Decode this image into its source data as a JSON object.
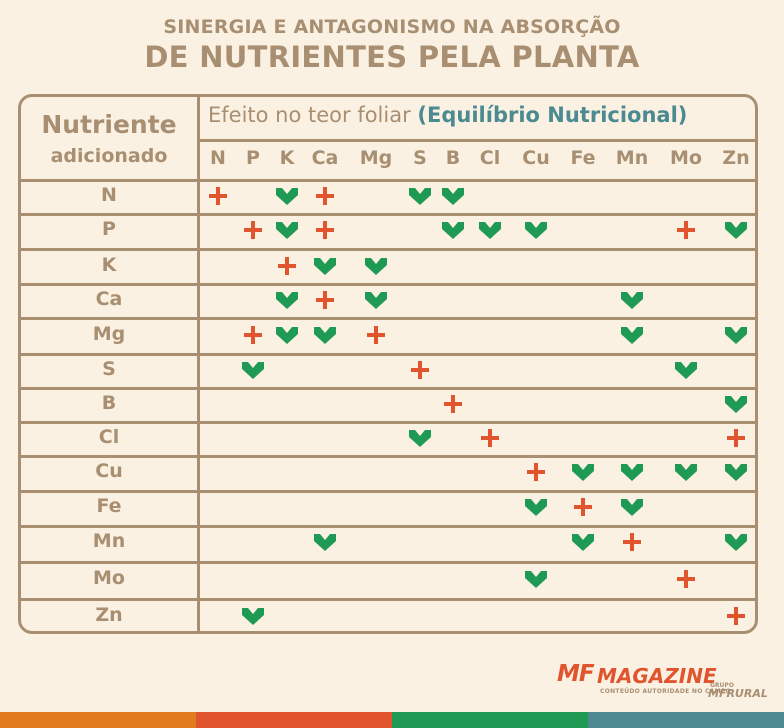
{
  "title_line1": "SINERGIA E ANTAGONISMO NA ABSORÇÃO",
  "title_line2": "DE NUTRIENTES PELA PLANTA",
  "header_left_line1": "Nutriente",
  "header_left_line2": "adicionado",
  "effect_title_prefix": "Efeito no teor foliar",
  "effect_title_highlight": "(Equilíbrio Nutricional)",
  "columns": [
    "N",
    "P",
    "K",
    "Ca",
    "Mg",
    "S",
    "B",
    "Cl",
    "Cu",
    "Fe",
    "Mn",
    "Mo",
    "Zn"
  ],
  "rows": [
    {
      "label": "N",
      "marks": [
        "+",
        "",
        "v",
        "+",
        "",
        "v",
        "v",
        "",
        "",
        "",
        "",
        "",
        ""
      ]
    },
    {
      "label": "P",
      "marks": [
        "",
        "+",
        "v",
        "+",
        "",
        "",
        "v",
        "v",
        "v",
        "",
        "",
        "+",
        "v"
      ]
    },
    {
      "label": "K",
      "marks": [
        "",
        "",
        "+",
        "v",
        "v",
        "",
        "",
        "",
        "",
        "",
        "",
        "",
        ""
      ]
    },
    {
      "label": "Ca",
      "marks": [
        "",
        "",
        "v",
        "+",
        "v",
        "",
        "",
        "",
        "",
        "",
        "v",
        "",
        ""
      ]
    },
    {
      "label": "Mg",
      "marks": [
        "",
        "+",
        "v",
        "v",
        "+",
        "",
        "",
        "",
        "",
        "",
        "v",
        "",
        "v"
      ]
    },
    {
      "label": "S",
      "marks": [
        "",
        "v",
        "",
        "",
        "",
        "+",
        "",
        "",
        "",
        "",
        "",
        "v",
        ""
      ]
    },
    {
      "label": "B",
      "marks": [
        "",
        "",
        "",
        "",
        "",
        "",
        "+",
        "",
        "",
        "",
        "",
        "",
        "v"
      ]
    },
    {
      "label": "Cl",
      "marks": [
        "",
        "",
        "",
        "",
        "",
        "v",
        "",
        "+",
        "",
        "",
        "",
        "",
        "+"
      ]
    },
    {
      "label": "Cu",
      "marks": [
        "",
        "",
        "",
        "",
        "",
        "",
        "",
        "",
        "+",
        "v",
        "v",
        "v",
        "v"
      ]
    },
    {
      "label": "Fe",
      "marks": [
        "",
        "",
        "",
        "",
        "",
        "",
        "",
        "",
        "v",
        "+",
        "v",
        "",
        ""
      ]
    },
    {
      "label": "Mn",
      "marks": [
        "",
        "",
        "",
        "v",
        "",
        "",
        "",
        "",
        "",
        "v",
        "+",
        "",
        "v"
      ]
    },
    {
      "label": "Mo",
      "marks": [
        "",
        "",
        "",
        "",
        "",
        "",
        "",
        "",
        "v",
        "",
        "",
        "+",
        ""
      ]
    },
    {
      "label": "Zn",
      "marks": [
        "",
        "v",
        "",
        "",
        "",
        "",
        "",
        "",
        "",
        "",
        "",
        "",
        "+"
      ]
    }
  ],
  "colors": {
    "text": "#a88f72",
    "plus": "#e0552d",
    "check": "#1f9a55",
    "highlight": "#4a8a90",
    "background": "#fbf1e3"
  },
  "logo_mf": "MF",
  "logo_magazine": "MAGAZINE",
  "logo_tagline": "CONTEÚDO AUTORIDADE NO CAMPO",
  "logo_grupo": "GRUPO",
  "logo_mfrural": "MFRURAL",
  "footer_colors": [
    "#e27a1f",
    "#e0552d",
    "#1f9a55",
    "#4a8a90"
  ]
}
